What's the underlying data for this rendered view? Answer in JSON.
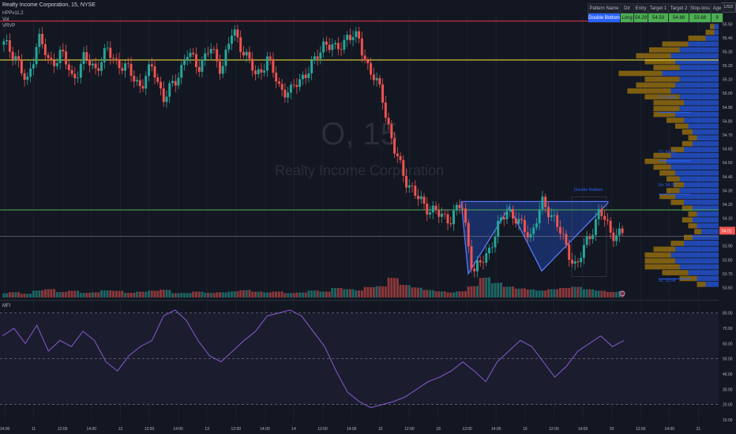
{
  "header": {
    "title": "Realty Income Corporation, 15, NYSE",
    "indicators": [
      "HPPv11.2",
      "Vol",
      "VRVP"
    ],
    "currency_button": "USD"
  },
  "watermark": {
    "symbol": "O, 15",
    "name": "Realty Income Corporation"
  },
  "pattern_table": {
    "headers": [
      "Pattern Name",
      "Dir",
      "Entry",
      "Target 1",
      "Target 2",
      "Stop-loss",
      "Age"
    ],
    "row": [
      "Double Bottom",
      "Long",
      "54.29",
      "54.53",
      "54.88",
      "53.68",
      "9"
    ]
  },
  "annotations": {
    "pattern_label": "Double Bottom",
    "t2": "T2: 54.88",
    "t1": "T1: 54.53",
    "entry": "En: 54.29",
    "sl": "SL: 53.68"
  },
  "price_axis": {
    "labels": [
      "55.50",
      "55.40",
      "55.30",
      "55.20",
      "55.10",
      "55.00",
      "54.90",
      "54.80",
      "54.70",
      "54.60",
      "54.50",
      "54.40",
      "54.30",
      "54.20",
      "54.10",
      "54.00",
      "53.90",
      "53.80",
      "53.70",
      "53.60"
    ],
    "current_price": "54.01"
  },
  "mfi_panel": {
    "label": "MFI",
    "axis_labels": [
      "80.00",
      "70.00",
      "60.00",
      "50.00",
      "40.00",
      "30.00",
      "20.00",
      "10.00"
    ]
  },
  "time_axis": {
    "labels": [
      "14:00",
      "11",
      "12:00",
      "14:00",
      "12",
      "12:00",
      "14:00",
      "13",
      "12:00",
      "14:00",
      "14",
      "12:00",
      "14:00",
      "15",
      "12:00",
      "18",
      "12:00",
      "14:00",
      "19",
      "12:00",
      "14:00",
      "20",
      "12:00",
      "14:00",
      "21"
    ]
  },
  "colors": {
    "up": "#26a69a",
    "down": "#ef5350",
    "red_line": "#f23645",
    "yellow_line": "#ffeb3b",
    "green_line": "#4caf50",
    "pattern_fill": "#2962ff",
    "mfi_line": "#7e57c2",
    "vp_up": "#2962ff",
    "vp_down": "#b8860b"
  },
  "chart_data": {
    "type": "candlestick",
    "symbol": "O",
    "interval": "15",
    "price_range": [
      53.58,
      55.53
    ],
    "levels": {
      "red": 55.52,
      "yellow": 55.24,
      "green": 54.16,
      "grey": 53.97,
      "t2": 54.88,
      "t1": 54.53,
      "entry": 54.29,
      "sl": 53.68
    },
    "current_price": 54.01,
    "price_path": [
      55.35,
      55.28,
      55.05,
      55.42,
      55.2,
      55.3,
      55.1,
      55.25,
      55.18,
      55.3,
      55.22,
      55.15,
      55.05,
      55.2,
      54.95,
      55.1,
      55.28,
      55.2,
      55.32,
      55.18,
      55.45,
      55.3,
      55.12,
      55.25,
      55.05,
      55.0,
      55.12,
      55.2,
      55.38,
      55.3,
      55.42,
      55.38,
      55.15,
      55.0,
      54.6,
      54.4,
      54.25,
      54.18,
      54.12,
      54.1,
      54.2,
      53.7,
      53.82,
      54.0,
      54.18,
      54.05,
      53.98,
      54.2,
      54.12,
      53.9,
      53.75,
      53.95,
      54.15,
      54.0,
      53.98
    ],
    "volume_range": [
      0,
      1
    ],
    "volume": [
      0.25,
      0.3,
      0.2,
      0.35,
      0.4,
      0.25,
      0.3,
      0.2,
      0.22,
      0.3,
      0.28,
      0.2,
      0.25,
      0.3,
      0.35,
      0.2,
      0.22,
      0.3,
      0.25,
      0.3,
      0.35,
      0.4,
      0.3,
      0.25,
      0.28,
      0.2,
      0.22,
      0.3,
      0.25,
      0.4,
      0.35,
      0.3,
      0.45,
      0.5,
      0.9,
      0.6,
      0.5,
      0.4,
      0.35,
      0.3,
      0.35,
      0.6,
      1.0,
      0.7,
      0.5,
      0.4,
      0.35,
      0.3,
      0.35,
      0.4,
      0.45,
      0.35,
      0.3,
      0.25,
      0.3
    ],
    "mfi": {
      "range": [
        10,
        85
      ],
      "reference_lines": [
        80,
        50,
        20
      ],
      "values": [
        65,
        70,
        60,
        72,
        55,
        62,
        58,
        68,
        62,
        48,
        42,
        52,
        58,
        62,
        78,
        82,
        75,
        62,
        52,
        48,
        55,
        62,
        68,
        78,
        80,
        82,
        78,
        68,
        58,
        42,
        28,
        22,
        18,
        20,
        22,
        25,
        30,
        35,
        38,
        42,
        48,
        42,
        35,
        48,
        55,
        62,
        58,
        48,
        38,
        45,
        55,
        60,
        65,
        58,
        62
      ]
    },
    "volume_profile": {
      "price_range": [
        53.6,
        55.5
      ],
      "up": [
        0.05,
        0.05,
        0.15,
        0.35,
        0.45,
        0.55,
        0.5,
        0.45,
        0.65,
        0.45,
        0.5,
        0.55,
        0.45,
        0.4,
        0.45,
        0.5,
        0.4,
        0.35,
        0.3,
        0.25,
        0.3,
        0.4,
        0.55,
        0.6,
        0.55,
        0.5,
        0.45,
        0.4,
        0.45,
        0.5,
        0.4,
        0.3,
        0.25,
        0.3,
        0.25,
        0.2,
        0.3,
        0.4,
        0.5,
        0.55,
        0.5,
        0.45,
        0.35,
        0.25,
        0.15
      ],
      "down": [
        0.05,
        0.1,
        0.2,
        0.3,
        0.35,
        0.4,
        0.35,
        0.3,
        0.5,
        0.4,
        0.45,
        0.5,
        0.4,
        0.35,
        0.3,
        0.25,
        0.2,
        0.15,
        0.12,
        0.1,
        0.12,
        0.15,
        0.2,
        0.25,
        0.2,
        0.18,
        0.15,
        0.12,
        0.15,
        0.18,
        0.15,
        0.12,
        0.1,
        0.12,
        0.1,
        0.08,
        0.1,
        0.15,
        0.25,
        0.3,
        0.35,
        0.4,
        0.3,
        0.2,
        0.1
      ]
    },
    "double_bottom": {
      "points_price": [
        54.22,
        53.7,
        54.18,
        53.72,
        54.21
      ]
    }
  }
}
